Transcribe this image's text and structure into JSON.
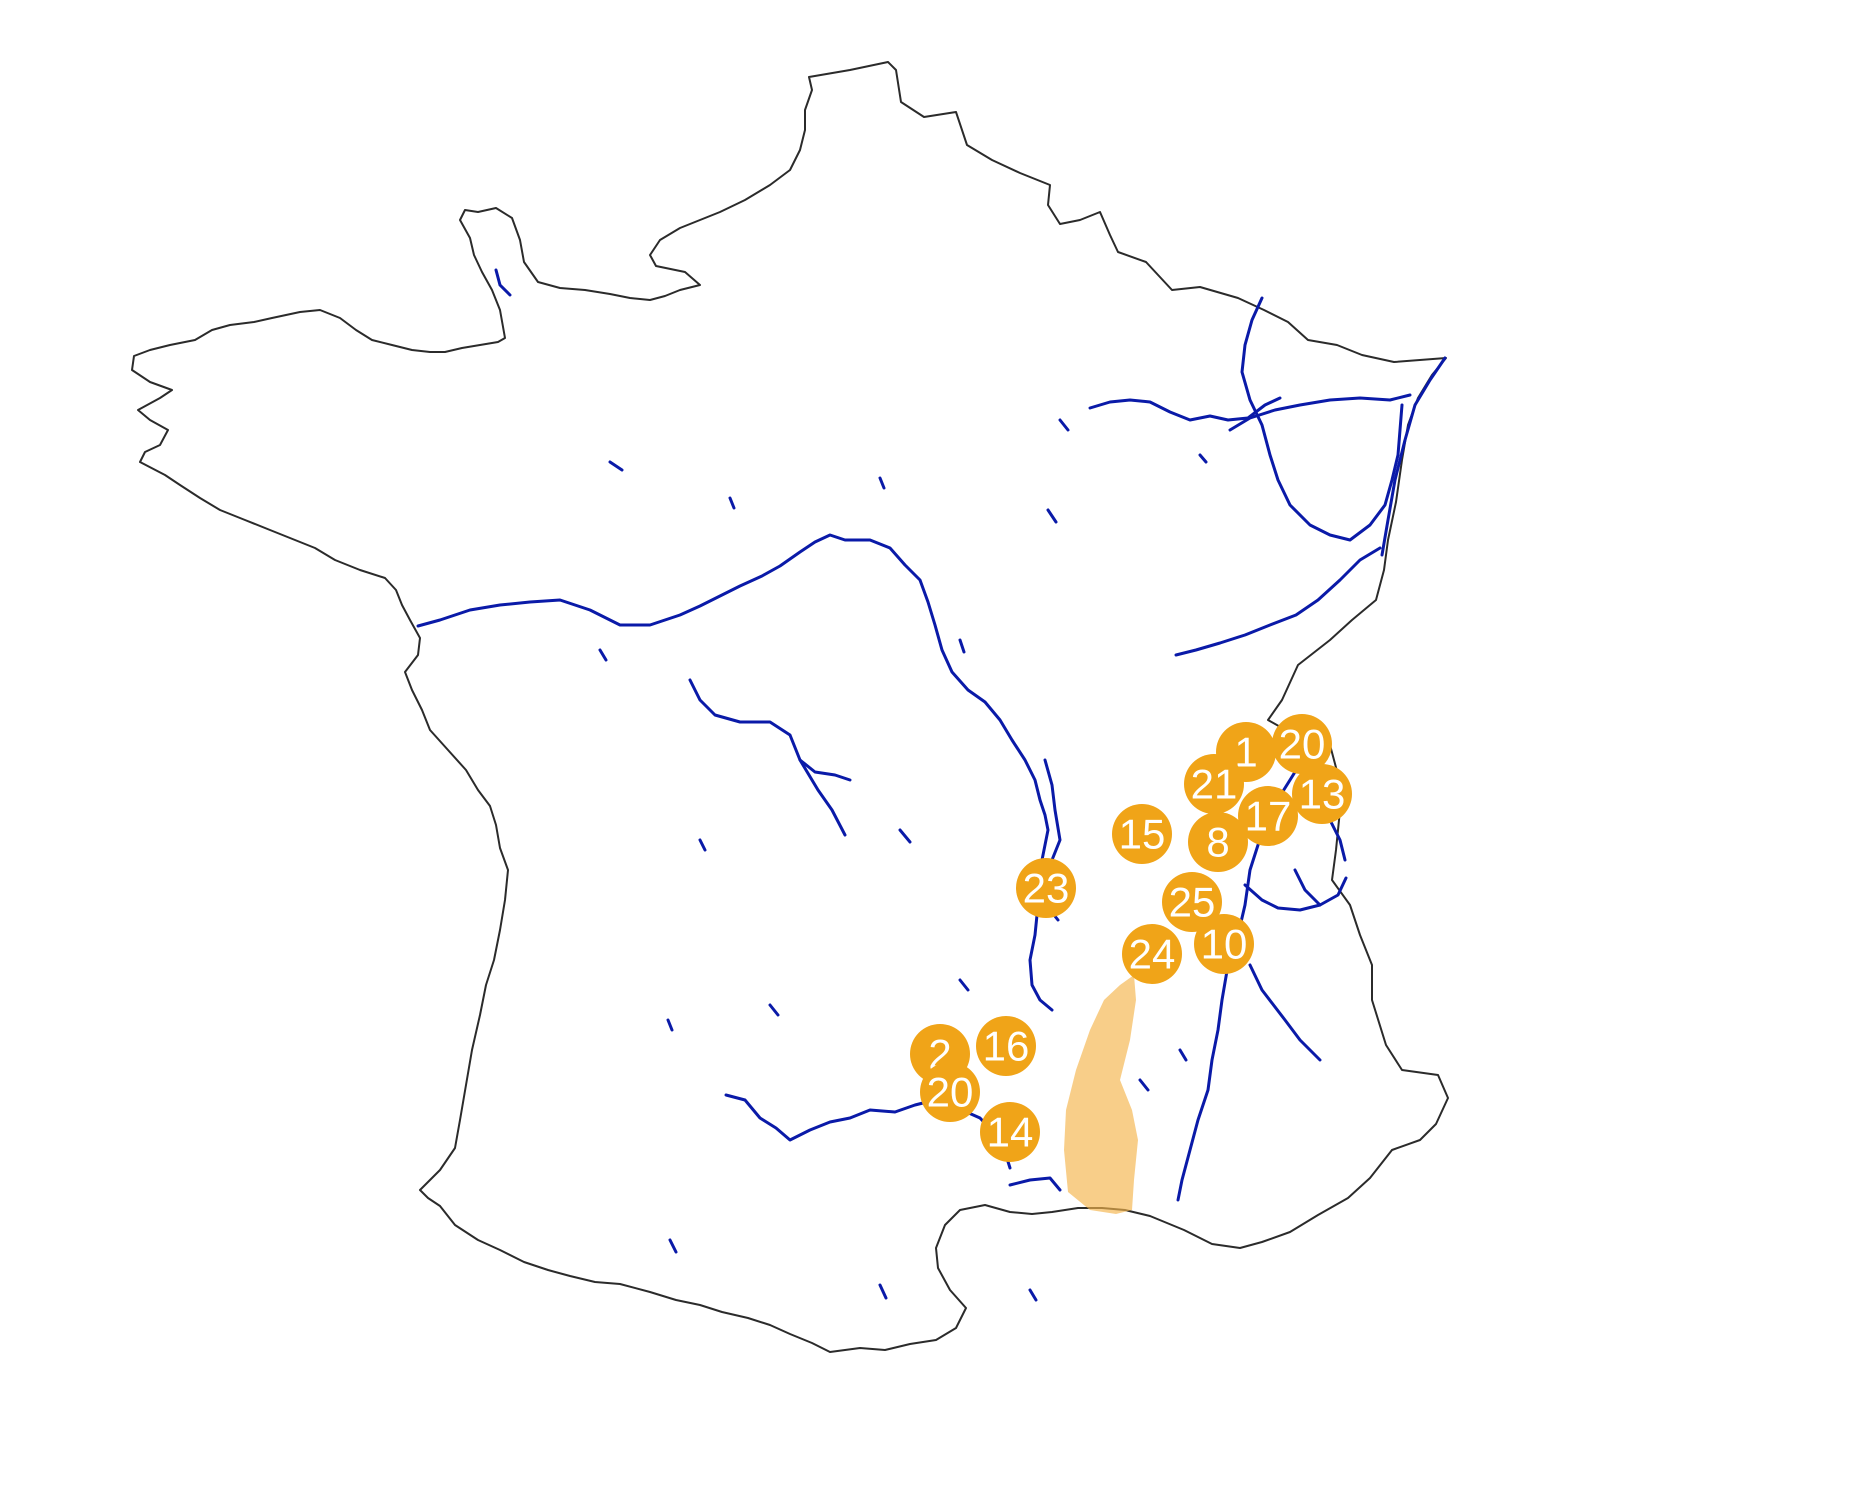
{
  "colors": {
    "background": "#ffffff",
    "border": "#2b2b2b",
    "rivers": "#0a1aa8",
    "marker_fill": "#f0a418",
    "marker_text": "#ffffff",
    "region_fill": "#f5b44a"
  },
  "markers": [
    {
      "label": "1"
    },
    {
      "label": "20"
    },
    {
      "label": "21"
    },
    {
      "label": "13"
    },
    {
      "label": "17"
    },
    {
      "label": "8"
    },
    {
      "label": "15"
    },
    {
      "label": "23"
    },
    {
      "label": "25"
    },
    {
      "label": "10"
    },
    {
      "label": "24"
    },
    {
      "label": "2"
    },
    {
      "label": "16"
    },
    {
      "label": "20"
    },
    {
      "label": "14"
    }
  ]
}
